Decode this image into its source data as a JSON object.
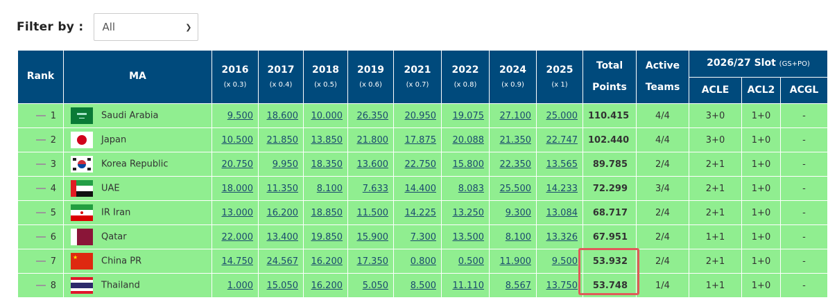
{
  "filter": {
    "label": "Filter by :",
    "selected": "All"
  },
  "table": {
    "headers": {
      "rank": "Rank",
      "ma": "MA",
      "years": [
        {
          "year": "2016",
          "factor": "(x 0.3)"
        },
        {
          "year": "2017",
          "factor": "(x 0.4)"
        },
        {
          "year": "2018",
          "factor": "(x 0.5)"
        },
        {
          "year": "2019",
          "factor": "(x 0.6)"
        },
        {
          "year": "2021",
          "factor": "(x 0.7)"
        },
        {
          "year": "2022",
          "factor": "(x 0.8)"
        },
        {
          "year": "2024",
          "factor": "(x 0.9)"
        },
        {
          "year": "2025",
          "factor": "(x 1)"
        }
      ],
      "total_line1": "Total",
      "total_line2": "Points",
      "active_line1": "Active",
      "active_line2": "Teams",
      "slot": "2026/27 Slot",
      "slot_note": "(GS+PO)",
      "acle": "ACLE",
      "acl2": "ACL2",
      "acgl": "ACGL"
    },
    "rows": [
      {
        "rank": "1",
        "ma": "Saudi Arabia",
        "flag": "saudi-arabia",
        "values": [
          "9.500",
          "18.600",
          "10.000",
          "26.350",
          "20.950",
          "19.075",
          "27.100",
          "25.000"
        ],
        "total": "110.415",
        "active": "4/4",
        "acle": "3+0",
        "acl2": "1+0",
        "acgl": "-"
      },
      {
        "rank": "2",
        "ma": "Japan",
        "flag": "japan",
        "values": [
          "10.500",
          "21.850",
          "13.850",
          "21.800",
          "17.875",
          "20.088",
          "21.350",
          "22.747"
        ],
        "total": "102.440",
        "active": "4/4",
        "acle": "3+0",
        "acl2": "1+0",
        "acgl": "-"
      },
      {
        "rank": "3",
        "ma": "Korea Republic",
        "flag": "korea",
        "values": [
          "20.750",
          "9.950",
          "18.350",
          "13.600",
          "22.750",
          "15.800",
          "22.350",
          "13.565"
        ],
        "total": "89.785",
        "active": "2/4",
        "acle": "2+1",
        "acl2": "1+0",
        "acgl": "-"
      },
      {
        "rank": "4",
        "ma": "UAE",
        "flag": "uae",
        "values": [
          "18.000",
          "11.350",
          "8.100",
          "7.633",
          "14.400",
          "8.083",
          "25.500",
          "14.233"
        ],
        "total": "72.299",
        "active": "3/4",
        "acle": "2+1",
        "acl2": "1+0",
        "acgl": "-"
      },
      {
        "rank": "5",
        "ma": "IR Iran",
        "flag": "iran",
        "values": [
          "13.000",
          "16.200",
          "18.850",
          "11.500",
          "14.225",
          "13.250",
          "9.300",
          "13.084"
        ],
        "total": "68.717",
        "active": "2/4",
        "acle": "2+1",
        "acl2": "1+0",
        "acgl": "-"
      },
      {
        "rank": "6",
        "ma": "Qatar",
        "flag": "qatar",
        "values": [
          "22.000",
          "13.400",
          "19.850",
          "15.900",
          "7.300",
          "13.500",
          "8.100",
          "13.326"
        ],
        "total": "67.951",
        "active": "2/4",
        "acle": "1+1",
        "acl2": "1+0",
        "acgl": "-"
      },
      {
        "rank": "7",
        "ma": "China PR",
        "flag": "china",
        "values": [
          "14.750",
          "24.567",
          "16.200",
          "17.350",
          "0.800",
          "0.500",
          "11.900",
          "9.500"
        ],
        "total": "53.932",
        "active": "2/4",
        "acle": "2+1",
        "acl2": "1+0",
        "acgl": "-"
      },
      {
        "rank": "8",
        "ma": "Thailand",
        "flag": "thailand",
        "values": [
          "1.000",
          "15.050",
          "16.200",
          "5.050",
          "8.500",
          "11.110",
          "8.567",
          "13.750"
        ],
        "total": "53.748",
        "active": "1/4",
        "acle": "1+1",
        "acl2": "1+0",
        "acgl": "-"
      }
    ]
  },
  "colors": {
    "header": "#004a7c",
    "row": "#90ee90",
    "highlight": "#e05a5a"
  }
}
